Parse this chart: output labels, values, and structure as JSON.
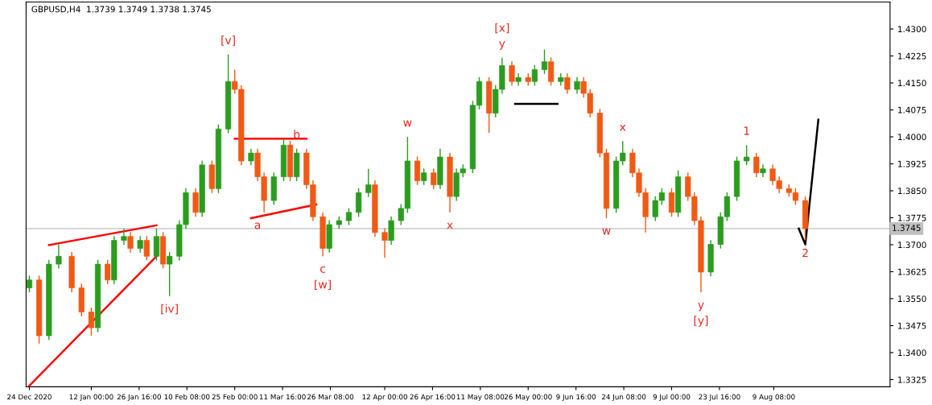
{
  "chart_data": {
    "type": "candlestick",
    "title": "GBPUSD,H4  1.3739 1.3749 1.3738 1.3745",
    "x": [
      "2020-12-24",
      "2020-12-27",
      "2020-12-30",
      "2021-01-02",
      "2021-01-06",
      "2021-01-09",
      "2021-01-12",
      "2021-01-14",
      "2021-01-17",
      "2021-01-19",
      "2021-01-22",
      "2021-01-24",
      "2021-01-27",
      "2021-01-29",
      "2021-02-01",
      "2021-02-03",
      "2021-02-05",
      "2021-02-08",
      "2021-02-10",
      "2021-02-13",
      "2021-02-15",
      "2021-02-18",
      "2021-02-20",
      "2021-02-23",
      "2021-02-25",
      "2021-02-27",
      "2021-03-02",
      "2021-03-04",
      "2021-03-06",
      "2021-03-09",
      "2021-03-12",
      "2021-03-14",
      "2021-03-16",
      "2021-03-19",
      "2021-03-21",
      "2021-03-24",
      "2021-03-26",
      "2021-03-29",
      "2021-04-01",
      "2021-04-04",
      "2021-04-07",
      "2021-04-09",
      "2021-04-12",
      "2021-04-14",
      "2021-04-17",
      "2021-04-19",
      "2021-04-22",
      "2021-04-24",
      "2021-04-27",
      "2021-04-29",
      "2021-05-02",
      "2021-05-04",
      "2021-05-06",
      "2021-05-09",
      "2021-05-11",
      "2021-05-14",
      "2021-05-16",
      "2021-05-18",
      "2021-05-21",
      "2021-05-23",
      "2021-05-26",
      "2021-05-28",
      "2021-05-31",
      "2021-06-02",
      "2021-06-05",
      "2021-06-07",
      "2021-06-10",
      "2021-06-12",
      "2021-06-14",
      "2021-06-17",
      "2021-06-19",
      "2021-06-22",
      "2021-06-24",
      "2021-06-27",
      "2021-06-29",
      "2021-07-01",
      "2021-07-04",
      "2021-07-06",
      "2021-07-09",
      "2021-07-11",
      "2021-07-14",
      "2021-07-16",
      "2021-07-18",
      "2021-07-21",
      "2021-07-24",
      "2021-07-26",
      "2021-07-29",
      "2021-08-01",
      "2021-08-04",
      "2021-08-06",
      "2021-08-09",
      "2021-08-11",
      "2021-08-14",
      "2021-08-16",
      "2021-08-19"
    ],
    "ohlc": [
      [
        1.358,
        1.3614,
        1.3568,
        1.3602
      ],
      [
        1.3602,
        1.3614,
        1.3425,
        1.3447
      ],
      [
        1.3447,
        1.3658,
        1.3435,
        1.3646
      ],
      [
        1.3646,
        1.3701,
        1.3634,
        1.3668
      ],
      [
        1.3668,
        1.368,
        1.3568,
        1.358
      ],
      [
        1.358,
        1.3592,
        1.3501,
        1.3513
      ],
      [
        1.3513,
        1.3525,
        1.3447,
        1.3469
      ],
      [
        1.3469,
        1.3658,
        1.3457,
        1.3646
      ],
      [
        1.3646,
        1.3658,
        1.359,
        1.3602
      ],
      [
        1.3602,
        1.3724,
        1.359,
        1.3712
      ],
      [
        1.3712,
        1.3745,
        1.37,
        1.3723
      ],
      [
        1.3723,
        1.3735,
        1.3678,
        1.369
      ],
      [
        1.369,
        1.3724,
        1.3678,
        1.3712
      ],
      [
        1.3712,
        1.3724,
        1.3656,
        1.3668
      ],
      [
        1.3668,
        1.3745,
        1.3656,
        1.3723
      ],
      [
        1.3723,
        1.3735,
        1.3634,
        1.3646
      ],
      [
        1.3646,
        1.368,
        1.3557,
        1.3668
      ],
      [
        1.3668,
        1.3768,
        1.3656,
        1.3756
      ],
      [
        1.3756,
        1.3857,
        1.3744,
        1.3845
      ],
      [
        1.3845,
        1.3857,
        1.3778,
        1.379
      ],
      [
        1.379,
        1.3934,
        1.3778,
        1.3922
      ],
      [
        1.3922,
        1.3934,
        1.3844,
        1.3856
      ],
      [
        1.3856,
        1.4034,
        1.3844,
        1.4022
      ],
      [
        1.4022,
        1.4229,
        1.401,
        1.4154
      ],
      [
        1.4154,
        1.4187,
        1.412,
        1.4132
      ],
      [
        1.4132,
        1.4144,
        1.3921,
        1.3933
      ],
      [
        1.3933,
        1.3967,
        1.3921,
        1.3955
      ],
      [
        1.3955,
        1.3967,
        1.3877,
        1.3889
      ],
      [
        1.3889,
        1.3901,
        1.379,
        1.3823
      ],
      [
        1.3823,
        1.3901,
        1.3811,
        1.3889
      ],
      [
        1.3889,
        1.3995,
        1.3877,
        1.3977
      ],
      [
        1.3977,
        1.3989,
        1.3877,
        1.3889
      ],
      [
        1.3889,
        1.3967,
        1.3877,
        1.3955
      ],
      [
        1.3955,
        1.3967,
        1.3855,
        1.3867
      ],
      [
        1.3867,
        1.3879,
        1.3766,
        1.3778
      ],
      [
        1.3778,
        1.379,
        1.3668,
        1.369
      ],
      [
        1.369,
        1.3768,
        1.3678,
        1.3756
      ],
      [
        1.3756,
        1.3779,
        1.3744,
        1.3767
      ],
      [
        1.3767,
        1.3802,
        1.3755,
        1.379
      ],
      [
        1.379,
        1.3857,
        1.3778,
        1.3845
      ],
      [
        1.3845,
        1.3911,
        1.3833,
        1.3867
      ],
      [
        1.3867,
        1.3879,
        1.3722,
        1.3734
      ],
      [
        1.3734,
        1.3746,
        1.3664,
        1.3712
      ],
      [
        1.3712,
        1.3779,
        1.37,
        1.3767
      ],
      [
        1.3767,
        1.3813,
        1.3755,
        1.3801
      ],
      [
        1.3801,
        1.4,
        1.3789,
        1.3933
      ],
      [
        1.3933,
        1.3945,
        1.3866,
        1.3878
      ],
      [
        1.3878,
        1.3912,
        1.3866,
        1.39
      ],
      [
        1.39,
        1.3912,
        1.3855,
        1.3867
      ],
      [
        1.3867,
        1.3967,
        1.3855,
        1.3944
      ],
      [
        1.3944,
        1.3956,
        1.379,
        1.3834
      ],
      [
        1.3834,
        1.3912,
        1.3822,
        1.39
      ],
      [
        1.39,
        1.3923,
        1.3888,
        1.3911
      ],
      [
        1.3911,
        1.41,
        1.3899,
        1.4088
      ],
      [
        1.4088,
        1.4166,
        1.4076,
        1.4154
      ],
      [
        1.4154,
        1.4166,
        1.4011,
        1.4066
      ],
      [
        1.4066,
        1.4144,
        1.4054,
        1.4132
      ],
      [
        1.4132,
        1.422,
        1.412,
        1.4198
      ],
      [
        1.4198,
        1.421,
        1.4142,
        1.4154
      ],
      [
        1.4154,
        1.4177,
        1.4142,
        1.4165
      ],
      [
        1.4165,
        1.4177,
        1.4142,
        1.4154
      ],
      [
        1.4154,
        1.4199,
        1.4142,
        1.4187
      ],
      [
        1.4187,
        1.4243,
        1.4175,
        1.4209
      ],
      [
        1.4209,
        1.4221,
        1.4142,
        1.4154
      ],
      [
        1.4154,
        1.4177,
        1.4142,
        1.4165
      ],
      [
        1.4165,
        1.4177,
        1.412,
        1.4132
      ],
      [
        1.4132,
        1.4166,
        1.412,
        1.4154
      ],
      [
        1.4154,
        1.4166,
        1.4109,
        1.4121
      ],
      [
        1.4121,
        1.4133,
        1.4054,
        1.4066
      ],
      [
        1.4066,
        1.4078,
        1.3943,
        1.3955
      ],
      [
        1.3955,
        1.3967,
        1.3774,
        1.3801
      ],
      [
        1.3801,
        1.3945,
        1.3789,
        1.3933
      ],
      [
        1.3933,
        1.3988,
        1.3921,
        1.3955
      ],
      [
        1.3955,
        1.3967,
        1.3888,
        1.39
      ],
      [
        1.39,
        1.3912,
        1.3833,
        1.3845
      ],
      [
        1.3845,
        1.3857,
        1.3734,
        1.3778
      ],
      [
        1.3778,
        1.3835,
        1.3766,
        1.3823
      ],
      [
        1.3823,
        1.3857,
        1.3811,
        1.3845
      ],
      [
        1.3845,
        1.3857,
        1.3778,
        1.379
      ],
      [
        1.379,
        1.3907,
        1.3778,
        1.3889
      ],
      [
        1.3889,
        1.3901,
        1.3822,
        1.3834
      ],
      [
        1.3834,
        1.3846,
        1.3755,
        1.3767
      ],
      [
        1.3767,
        1.3779,
        1.3568,
        1.3624
      ],
      [
        1.3624,
        1.3713,
        1.3612,
        1.3701
      ],
      [
        1.3701,
        1.379,
        1.3689,
        1.3778
      ],
      [
        1.3778,
        1.3846,
        1.3766,
        1.3834
      ],
      [
        1.3834,
        1.3945,
        1.3822,
        1.3933
      ],
      [
        1.3933,
        1.3977,
        1.3921,
        1.3944
      ],
      [
        1.3944,
        1.3956,
        1.3888,
        1.39
      ],
      [
        1.39,
        1.3923,
        1.3888,
        1.3911
      ],
      [
        1.3911,
        1.3923,
        1.3866,
        1.3878
      ],
      [
        1.3878,
        1.389,
        1.3844,
        1.3856
      ],
      [
        1.3856,
        1.3868,
        1.3833,
        1.3845
      ],
      [
        1.3845,
        1.3857,
        1.3811,
        1.3823
      ],
      [
        1.3823,
        1.3835,
        1.3712,
        1.3745
      ]
    ],
    "colors": [
      "#2a9d1f",
      "#f05a14",
      "#2a9d1f",
      "#2a9d1f",
      "#f05a14",
      "#f05a14",
      "#f05a14",
      "#2a9d1f",
      "#f05a14",
      "#2a9d1f",
      "#2a9d1f",
      "#f05a14",
      "#2a9d1f",
      "#f05a14",
      "#2a9d1f",
      "#f05a14",
      "#2a9d1f",
      "#2a9d1f",
      "#2a9d1f",
      "#f05a14",
      "#2a9d1f",
      "#f05a14",
      "#2a9d1f",
      "#2a9d1f",
      "#f05a14",
      "#f05a14",
      "#2a9d1f",
      "#f05a14",
      "#f05a14",
      "#2a9d1f",
      "#2a9d1f",
      "#f05a14",
      "#2a9d1f",
      "#f05a14",
      "#f05a14",
      "#f05a14",
      "#2a9d1f",
      "#2a9d1f",
      "#2a9d1f",
      "#2a9d1f",
      "#2a9d1f",
      "#f05a14",
      "#f05a14",
      "#2a9d1f",
      "#2a9d1f",
      "#2a9d1f",
      "#f05a14",
      "#2a9d1f",
      "#f05a14",
      "#2a9d1f",
      "#f05a14",
      "#2a9d1f",
      "#2a9d1f",
      "#2a9d1f",
      "#2a9d1f",
      "#f05a14",
      "#2a9d1f",
      "#2a9d1f",
      "#f05a14",
      "#2a9d1f",
      "#f05a14",
      "#2a9d1f",
      "#2a9d1f",
      "#f05a14",
      "#2a9d1f",
      "#f05a14",
      "#2a9d1f",
      "#f05a14",
      "#f05a14",
      "#f05a14",
      "#f05a14",
      "#2a9d1f",
      "#2a9d1f",
      "#f05a14",
      "#f05a14",
      "#f05a14",
      "#2a9d1f",
      "#2a9d1f",
      "#f05a14",
      "#2a9d1f",
      "#f05a14",
      "#f05a14",
      "#f05a14",
      "#2a9d1f",
      "#2a9d1f",
      "#2a9d1f",
      "#2a9d1f",
      "#2a9d1f",
      "#f05a14",
      "#2a9d1f",
      "#f05a14",
      "#f05a14",
      "#f05a14",
      "#f05a14",
      "#f05a14"
    ],
    "series": [
      {
        "type": "line",
        "x": [
          "2020-12-24",
          "2021-02-01"
        ],
        "values": [
          1.3308,
          1.3668
        ],
        "color": "#ff0000",
        "line_style": "solid"
      },
      {
        "type": "line",
        "x": [
          "2020-12-30",
          "2021-02-01"
        ],
        "values": [
          1.3699,
          1.3754
        ],
        "color": "#ff0000",
        "line_style": "solid"
      },
      {
        "type": "line",
        "x": [
          "2021-02-25",
          "2021-03-19"
        ],
        "values": [
          1.3995,
          1.3995
        ],
        "color": "#ff0000",
        "line_style": "solid"
      },
      {
        "type": "line",
        "x": [
          "2021-03-02",
          "2021-03-22"
        ],
        "values": [
          1.3774,
          1.3812
        ],
        "color": "#ff0000",
        "line_style": "solid"
      },
      {
        "type": "line",
        "x": [
          "2021-05-22",
          "2021-06-04"
        ],
        "values": [
          1.4092,
          1.4092
        ],
        "color": "#000000",
        "line_style": "solid"
      },
      {
        "type": "line",
        "x": [
          "2021-08-17",
          "2021-08-19",
          "2021-08-23"
        ],
        "values": [
          1.3745,
          1.3701,
          1.4048
        ],
        "color": "#000000",
        "line_style": "solid"
      }
    ],
    "xlim": [
      "2020-12-23",
      "2021-09-14"
    ],
    "xticks": [
      {
        "value": "2020-12-24",
        "label": "24 Dec 2020"
      },
      {
        "value": "2021-01-12T00:00",
        "label": "12 Jan 00:00"
      },
      {
        "value": "2021-01-26T16:00",
        "label": "26 Jan 16:00"
      },
      {
        "value": "2021-02-10T08:00",
        "label": "10 Feb 08:00"
      },
      {
        "value": "2021-02-25T00:00",
        "label": "25 Feb 00:00"
      },
      {
        "value": "2021-03-11T16:00",
        "label": "11 Mar 16:00"
      },
      {
        "value": "2021-03-26T08:00",
        "label": "26 Mar 08:00"
      },
      {
        "value": "2021-04-12T00:00",
        "label": "12 Apr 00:00"
      },
      {
        "value": "2021-04-26T16:00",
        "label": "26 Apr 16:00"
      },
      {
        "value": "2021-05-11T08:00",
        "label": "11 May 08:00"
      },
      {
        "value": "2021-05-26T00:00",
        "label": "26 May 00:00"
      },
      {
        "value": "2021-06-09T16:00",
        "label": "9 Jun 16:00"
      },
      {
        "value": "2021-06-24T08:00",
        "label": "24 Jun 08:00"
      },
      {
        "value": "2021-07-09T00:00",
        "label": "9 Jul 00:00"
      },
      {
        "value": "2021-07-23T16:00",
        "label": "23 Jul 16:00"
      },
      {
        "value": "2021-08-09T08:00",
        "label": "9 Aug 08:00"
      }
    ],
    "ylim": [
      1.3305,
      1.4375
    ],
    "yticks": [
      {
        "value": 1.3325,
        "label": "1.3325"
      },
      {
        "value": 1.34,
        "label": "1.3400"
      },
      {
        "value": 1.3475,
        "label": "1.3475"
      },
      {
        "value": 1.355,
        "label": "1.3550"
      },
      {
        "value": 1.3625,
        "label": "1.3625"
      },
      {
        "value": 1.37,
        "label": "1.3700"
      },
      {
        "value": 1.3775,
        "label": "1.3775"
      },
      {
        "value": 1.385,
        "label": "1.3850"
      },
      {
        "value": 1.3925,
        "label": "1.3925"
      },
      {
        "value": 1.4,
        "label": "1.4000"
      },
      {
        "value": 1.4075,
        "label": "1.4075"
      },
      {
        "value": 1.415,
        "label": "1.4150"
      },
      {
        "value": 1.4225,
        "label": "1.4225"
      },
      {
        "value": 1.43,
        "label": "1.4300"
      }
    ],
    "ref_lines": [
      {
        "axis": "y",
        "value": 1.3745,
        "label": "1.3745",
        "color": "#c0c0c0"
      }
    ],
    "grid": false,
    "annotations": [
      {
        "text": "[v]",
        "x": "2021-02-23",
        "y": 1.4229
      },
      {
        "text": "y",
        "x": "2021-05-18",
        "y": 1.422
      },
      {
        "text": "[x]",
        "x": "2021-05-18",
        "y": 1.422
      },
      {
        "text": "b",
        "x": "2021-03-16",
        "y": 1.3967
      },
      {
        "text": "w",
        "x": "2021-04-19",
        "y": 1.4
      },
      {
        "text": "x",
        "x": "2021-06-24",
        "y": 1.3988
      },
      {
        "text": "1",
        "x": "2021-08-01",
        "y": 1.3977
      },
      {
        "text": "a",
        "x": "2021-03-04",
        "y": 1.379
      },
      {
        "text": "x",
        "x": "2021-05-02",
        "y": 1.379
      },
      {
        "text": "w",
        "x": "2021-06-19",
        "y": 1.3774
      },
      {
        "text": "c",
        "x": "2021-03-24",
        "y": 1.3668
      },
      {
        "text": "[w]",
        "x": "2021-03-24",
        "y": 1.3668
      },
      {
        "text": "2",
        "x": "2021-08-19",
        "y": 1.3712
      },
      {
        "text": "[iv]",
        "x": "2021-02-05",
        "y": 1.3557
      },
      {
        "text": "y",
        "x": "2021-07-18",
        "y": 1.3568
      },
      {
        "text": "[y]",
        "x": "2021-07-18",
        "y": 1.3568
      }
    ]
  }
}
